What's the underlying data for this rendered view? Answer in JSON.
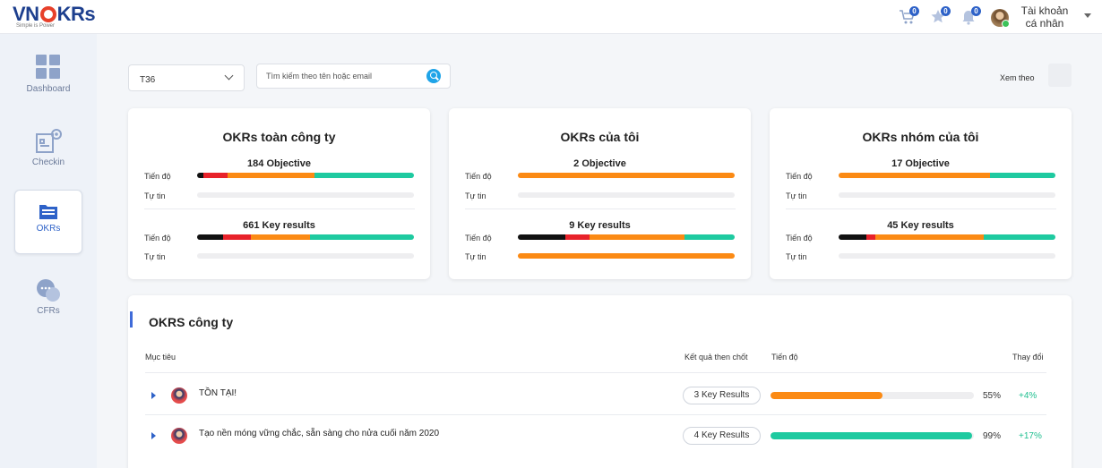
{
  "header": {
    "logo_text_left": "VN",
    "logo_text_right": "KRs",
    "logo_tagline": "Simple is Power",
    "account_label": "Tài khoản cá nhân",
    "icons": [
      {
        "name": "cart-icon",
        "badge": "0"
      },
      {
        "name": "star-icon",
        "badge": "0"
      },
      {
        "name": "bell-icon",
        "badge": "0"
      }
    ]
  },
  "sidebar": {
    "items": [
      {
        "label": "Dashboard",
        "icon": "dashboard-icon",
        "active": false
      },
      {
        "label": "Checkin",
        "icon": "checkin-icon",
        "active": false
      },
      {
        "label": "OKRs",
        "icon": "folder-icon",
        "active": true
      },
      {
        "label": "CFRs",
        "icon": "chat-icon",
        "active": false
      }
    ]
  },
  "toolbar": {
    "cycle_value": "T36",
    "search_placeholder": "Tìm kiếm theo tên hoặc email",
    "view_by_label": "Xem theo"
  },
  "labels": {
    "progress": "Tiến độ",
    "confidence": "Tự tin"
  },
  "colors": {
    "black": "#111111",
    "red": "#e8222a",
    "orange": "#fb8a14",
    "teal": "#1ecaa0",
    "accent": "#2e62c8"
  },
  "cards": [
    {
      "title": "OKRs toàn công ty",
      "objective_label": "184 Objective",
      "objective_segments": [
        0.03,
        0.11,
        0.4,
        0.46
      ],
      "keyresult_label": "661 Key results",
      "keyresult_segments": [
        0.12,
        0.13,
        0.27,
        0.48
      ],
      "objective_confidence": 0,
      "keyresult_confidence": 0
    },
    {
      "title": "OKRs của tôi",
      "objective_label": "2 Objective",
      "objective_segments": [
        0,
        0,
        1.0,
        0
      ],
      "keyresult_label": "9 Key results",
      "keyresult_segments": [
        0.22,
        0.11,
        0.44,
        0.23
      ],
      "objective_confidence": 0,
      "keyresult_confidence": 1.0
    },
    {
      "title": "OKRs nhóm của tôi",
      "objective_label": "17 Objective",
      "objective_segments": [
        0,
        0,
        0.7,
        0.3
      ],
      "keyresult_label": "45 Key results",
      "keyresult_segments": [
        0.13,
        0.04,
        0.5,
        0.33
      ],
      "objective_confidence": 0,
      "keyresult_confidence": 0
    }
  ],
  "company_okrs": {
    "title": "OKRS công ty",
    "headers": {
      "objective": "Mục tiêu",
      "key_results": "Kết quả then chốt",
      "progress": "Tiến độ",
      "change": "Thay đổi"
    },
    "rows": [
      {
        "name": "TỒN TẠI!",
        "key_results": "3 Key Results",
        "progress": 0.55,
        "progress_label": "55%",
        "change": "+4%",
        "color": "#fb8a14"
      },
      {
        "name": "Tạo nền móng vững chắc, sẵn sàng cho nửa cuối năm 2020",
        "key_results": "4 Key Results",
        "progress": 0.99,
        "progress_label": "99%",
        "change": "+17%",
        "color": "#1ecaa0"
      }
    ]
  }
}
